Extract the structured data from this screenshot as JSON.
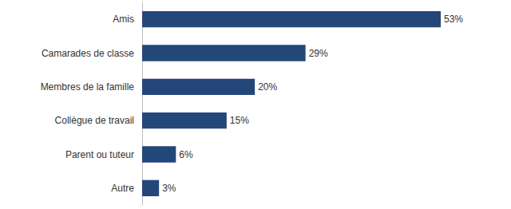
{
  "chart_data": {
    "type": "bar",
    "orientation": "horizontal",
    "categories": [
      "Amis",
      "Camarades de classe",
      "Membres de la famille",
      "Collègue de travail",
      "Parent ou tuteur",
      "Autre"
    ],
    "values": [
      53,
      29,
      20,
      15,
      6,
      3
    ],
    "value_labels": [
      "53%",
      "29%",
      "20%",
      "15%",
      "6%",
      "3%"
    ],
    "color": "#24477a",
    "data_labels": true,
    "tick_labels": "y",
    "grid": false
  }
}
